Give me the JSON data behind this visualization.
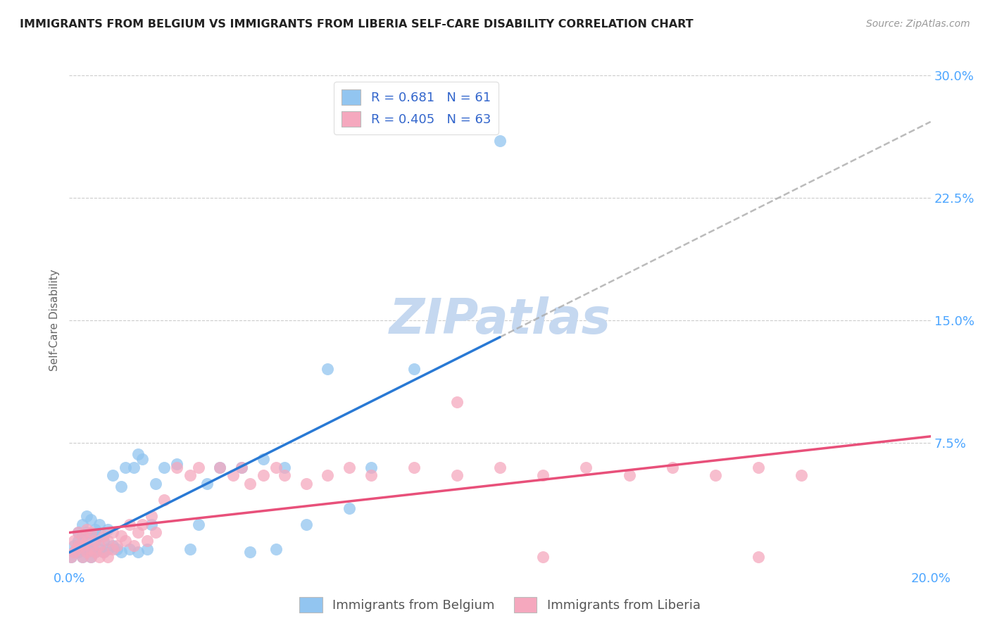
{
  "title": "IMMIGRANTS FROM BELGIUM VS IMMIGRANTS FROM LIBERIA SELF-CARE DISABILITY CORRELATION CHART",
  "source": "Source: ZipAtlas.com",
  "ylabel": "Self-Care Disability",
  "xlim": [
    0.0,
    0.2
  ],
  "ylim": [
    0.0,
    0.3
  ],
  "yticks": [
    0.075,
    0.15,
    0.225,
    0.3
  ],
  "ytick_labels": [
    "7.5%",
    "15.0%",
    "22.5%",
    "30.0%"
  ],
  "xticks": [
    0.0,
    0.05,
    0.1,
    0.15,
    0.2
  ],
  "xtick_labels": [
    "0.0%",
    "",
    "",
    "",
    "20.0%"
  ],
  "belgium_R": 0.681,
  "belgium_N": 61,
  "liberia_R": 0.405,
  "liberia_N": 63,
  "belgium_color": "#92c5f0",
  "liberia_color": "#f5a8be",
  "belgium_line_color": "#2979d4",
  "liberia_line_color": "#e8507a",
  "legend_label_belgium": "Immigrants from Belgium",
  "legend_label_liberia": "Immigrants from Liberia",
  "background_color": "#ffffff",
  "watermark_text": "ZIPatlas",
  "watermark_color": "#c5d8f0",
  "tick_color": "#4da6ff",
  "title_color": "#222222",
  "source_color": "#999999",
  "belgium_x": [
    0.0005,
    0.001,
    0.001,
    0.0015,
    0.002,
    0.002,
    0.002,
    0.0025,
    0.003,
    0.003,
    0.003,
    0.003,
    0.004,
    0.004,
    0.004,
    0.004,
    0.005,
    0.005,
    0.005,
    0.005,
    0.006,
    0.006,
    0.006,
    0.007,
    0.007,
    0.007,
    0.008,
    0.008,
    0.009,
    0.009,
    0.01,
    0.01,
    0.011,
    0.012,
    0.012,
    0.013,
    0.014,
    0.015,
    0.016,
    0.016,
    0.017,
    0.018,
    0.019,
    0.02,
    0.022,
    0.025,
    0.028,
    0.03,
    0.032,
    0.035,
    0.04,
    0.042,
    0.045,
    0.048,
    0.05,
    0.055,
    0.06,
    0.065,
    0.07,
    0.08,
    0.1
  ],
  "belgium_y": [
    0.005,
    0.008,
    0.012,
    0.01,
    0.008,
    0.015,
    0.02,
    0.012,
    0.005,
    0.01,
    0.018,
    0.025,
    0.008,
    0.012,
    0.02,
    0.03,
    0.005,
    0.01,
    0.018,
    0.028,
    0.008,
    0.015,
    0.022,
    0.01,
    0.018,
    0.025,
    0.008,
    0.015,
    0.01,
    0.022,
    0.012,
    0.055,
    0.01,
    0.008,
    0.048,
    0.06,
    0.01,
    0.06,
    0.008,
    0.068,
    0.065,
    0.01,
    0.025,
    0.05,
    0.06,
    0.062,
    0.01,
    0.025,
    0.05,
    0.06,
    0.06,
    0.008,
    0.065,
    0.01,
    0.06,
    0.025,
    0.12,
    0.035,
    0.06,
    0.12,
    0.26
  ],
  "liberia_x": [
    0.0005,
    0.001,
    0.001,
    0.0015,
    0.002,
    0.002,
    0.003,
    0.003,
    0.003,
    0.004,
    0.004,
    0.004,
    0.005,
    0.005,
    0.005,
    0.006,
    0.006,
    0.007,
    0.007,
    0.008,
    0.008,
    0.009,
    0.009,
    0.01,
    0.01,
    0.011,
    0.012,
    0.013,
    0.014,
    0.015,
    0.016,
    0.017,
    0.018,
    0.019,
    0.02,
    0.022,
    0.025,
    0.028,
    0.03,
    0.035,
    0.038,
    0.04,
    0.042,
    0.045,
    0.048,
    0.05,
    0.055,
    0.06,
    0.065,
    0.07,
    0.08,
    0.09,
    0.1,
    0.11,
    0.12,
    0.13,
    0.14,
    0.15,
    0.16,
    0.17,
    0.09,
    0.11,
    0.16
  ],
  "liberia_y": [
    0.005,
    0.008,
    0.015,
    0.01,
    0.012,
    0.02,
    0.005,
    0.012,
    0.018,
    0.008,
    0.015,
    0.022,
    0.005,
    0.01,
    0.02,
    0.008,
    0.015,
    0.005,
    0.012,
    0.008,
    0.018,
    0.005,
    0.015,
    0.01,
    0.02,
    0.012,
    0.018,
    0.015,
    0.025,
    0.012,
    0.02,
    0.025,
    0.015,
    0.03,
    0.02,
    0.04,
    0.06,
    0.055,
    0.06,
    0.06,
    0.055,
    0.06,
    0.05,
    0.055,
    0.06,
    0.055,
    0.05,
    0.055,
    0.06,
    0.055,
    0.06,
    0.055,
    0.06,
    0.055,
    0.06,
    0.055,
    0.06,
    0.055,
    0.06,
    0.055,
    0.1,
    0.005,
    0.005
  ],
  "belgium_line_x": [
    0.0,
    0.2
  ],
  "liberia_line_x": [
    0.0,
    0.2
  ],
  "dashed_line_start_x": 0.1
}
